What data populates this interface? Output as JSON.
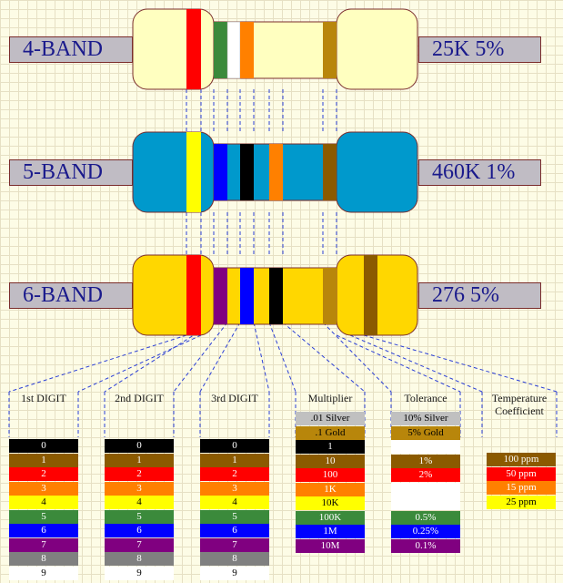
{
  "resistors": [
    {
      "label": "4-BAND",
      "value": "25K  5%",
      "body_color": "#ffffc0",
      "bands": [
        "#ff0000",
        "#3b8a3b",
        "#ffffff",
        "#ff8000",
        "#b8860b"
      ]
    },
    {
      "label": "5-BAND",
      "value": "460K  1%",
      "body_color": "#0099cc",
      "bands": [
        "#ffff00",
        "#0000ff",
        "#000000",
        "#ff8000",
        "#8b5a00"
      ]
    },
    {
      "label": "6-BAND",
      "value": "276  5%",
      "body_color": "#ffd700",
      "bands": [
        "#ff0000",
        "#800080",
        "#0000ff",
        "#000000",
        "#b8860b",
        "#8b5a00"
      ]
    }
  ],
  "columns": [
    {
      "header": [
        "1st DIGIT"
      ],
      "rows": [
        {
          "text": "0",
          "bg": "#000000",
          "fg": "#ffffff"
        },
        {
          "text": "1",
          "bg": "#8b5a00",
          "fg": "#ffffff"
        },
        {
          "text": "2",
          "bg": "#ff0000",
          "fg": "#ffffff"
        },
        {
          "text": "3",
          "bg": "#ff8000",
          "fg": "#ffffff"
        },
        {
          "text": "4",
          "bg": "#ffff00",
          "fg": "#000000"
        },
        {
          "text": "5",
          "bg": "#3b8a3b",
          "fg": "#ffffff"
        },
        {
          "text": "6",
          "bg": "#0000ff",
          "fg": "#ffffff"
        },
        {
          "text": "7",
          "bg": "#800080",
          "fg": "#ffffff"
        },
        {
          "text": "8",
          "bg": "#808080",
          "fg": "#ffffff"
        },
        {
          "text": "9",
          "bg": "#ffffff",
          "fg": "#000000"
        }
      ]
    },
    {
      "header": [
        "2nd DIGIT"
      ],
      "rows": [
        {
          "text": "0",
          "bg": "#000000",
          "fg": "#ffffff"
        },
        {
          "text": "1",
          "bg": "#8b5a00",
          "fg": "#ffffff"
        },
        {
          "text": "2",
          "bg": "#ff0000",
          "fg": "#ffffff"
        },
        {
          "text": "3",
          "bg": "#ff8000",
          "fg": "#ffffff"
        },
        {
          "text": "4",
          "bg": "#ffff00",
          "fg": "#000000"
        },
        {
          "text": "5",
          "bg": "#3b8a3b",
          "fg": "#ffffff"
        },
        {
          "text": "6",
          "bg": "#0000ff",
          "fg": "#ffffff"
        },
        {
          "text": "7",
          "bg": "#800080",
          "fg": "#ffffff"
        },
        {
          "text": "8",
          "bg": "#808080",
          "fg": "#ffffff"
        },
        {
          "text": "9",
          "bg": "#ffffff",
          "fg": "#000000"
        }
      ]
    },
    {
      "header": [
        "3rd DIGIT"
      ],
      "rows": [
        {
          "text": "0",
          "bg": "#000000",
          "fg": "#ffffff"
        },
        {
          "text": "1",
          "bg": "#8b5a00",
          "fg": "#ffffff"
        },
        {
          "text": "2",
          "bg": "#ff0000",
          "fg": "#ffffff"
        },
        {
          "text": "3",
          "bg": "#ff8000",
          "fg": "#ffffff"
        },
        {
          "text": "4",
          "bg": "#ffff00",
          "fg": "#000000"
        },
        {
          "text": "5",
          "bg": "#3b8a3b",
          "fg": "#ffffff"
        },
        {
          "text": "6",
          "bg": "#0000ff",
          "fg": "#ffffff"
        },
        {
          "text": "7",
          "bg": "#800080",
          "fg": "#ffffff"
        },
        {
          "text": "8",
          "bg": "#808080",
          "fg": "#ffffff"
        },
        {
          "text": "9",
          "bg": "#ffffff",
          "fg": "#000000"
        }
      ]
    },
    {
      "header": [
        "Multiplier"
      ],
      "rows": [
        {
          "text": ".01 Silver",
          "bg": "#c0c0c0",
          "fg": "#000000"
        },
        {
          "text": ".1 Gold",
          "bg": "#b8860b",
          "fg": "#000000"
        },
        {
          "text": "1",
          "bg": "#000000",
          "fg": "#ffffff"
        },
        {
          "text": "10",
          "bg": "#8b5a00",
          "fg": "#ffffff"
        },
        {
          "text": "100",
          "bg": "#ff0000",
          "fg": "#ffffff"
        },
        {
          "text": "1K",
          "bg": "#ff8000",
          "fg": "#ffffff"
        },
        {
          "text": "10K",
          "bg": "#ffff00",
          "fg": "#000000"
        },
        {
          "text": "100K",
          "bg": "#3b8a3b",
          "fg": "#ffffff"
        },
        {
          "text": "1M",
          "bg": "#0000ff",
          "fg": "#ffffff"
        },
        {
          "text": "10M",
          "bg": "#800080",
          "fg": "#ffffff"
        }
      ]
    },
    {
      "header": [
        "Tolerance"
      ],
      "rows": [
        {
          "text": "10% Silver",
          "bg": "#c0c0c0",
          "fg": "#000000"
        },
        {
          "text": "5% Gold",
          "bg": "#b8860b",
          "fg": "#000000"
        },
        {
          "text": "",
          "bg": "#ffffff",
          "fg": "#000000"
        },
        {
          "text": "1%",
          "bg": "#8b5a00",
          "fg": "#ffffff"
        },
        {
          "text": "2%",
          "bg": "#ff0000",
          "fg": "#ffffff"
        },
        {
          "text": "",
          "bg": "#ffffff",
          "fg": "#000000"
        },
        {
          "text": "",
          "bg": "#ffffff",
          "fg": "#000000"
        },
        {
          "text": "0.5%",
          "bg": "#3b8a3b",
          "fg": "#ffffff"
        },
        {
          "text": "0.25%",
          "bg": "#0000ff",
          "fg": "#ffffff"
        },
        {
          "text": "0.1%",
          "bg": "#800080",
          "fg": "#ffffff"
        }
      ]
    },
    {
      "header": [
        "Temperature",
        "Coefficient"
      ],
      "rows": [
        {
          "text": "100 ppm",
          "bg": "#8b5a00",
          "fg": "#ffffff"
        },
        {
          "text": "50 ppm",
          "bg": "#ff0000",
          "fg": "#ffffff"
        },
        {
          "text": "15 ppm",
          "bg": "#ff8000",
          "fg": "#ffffff"
        },
        {
          "text": "25 ppm",
          "bg": "#ffff00",
          "fg": "#000000"
        }
      ]
    }
  ]
}
